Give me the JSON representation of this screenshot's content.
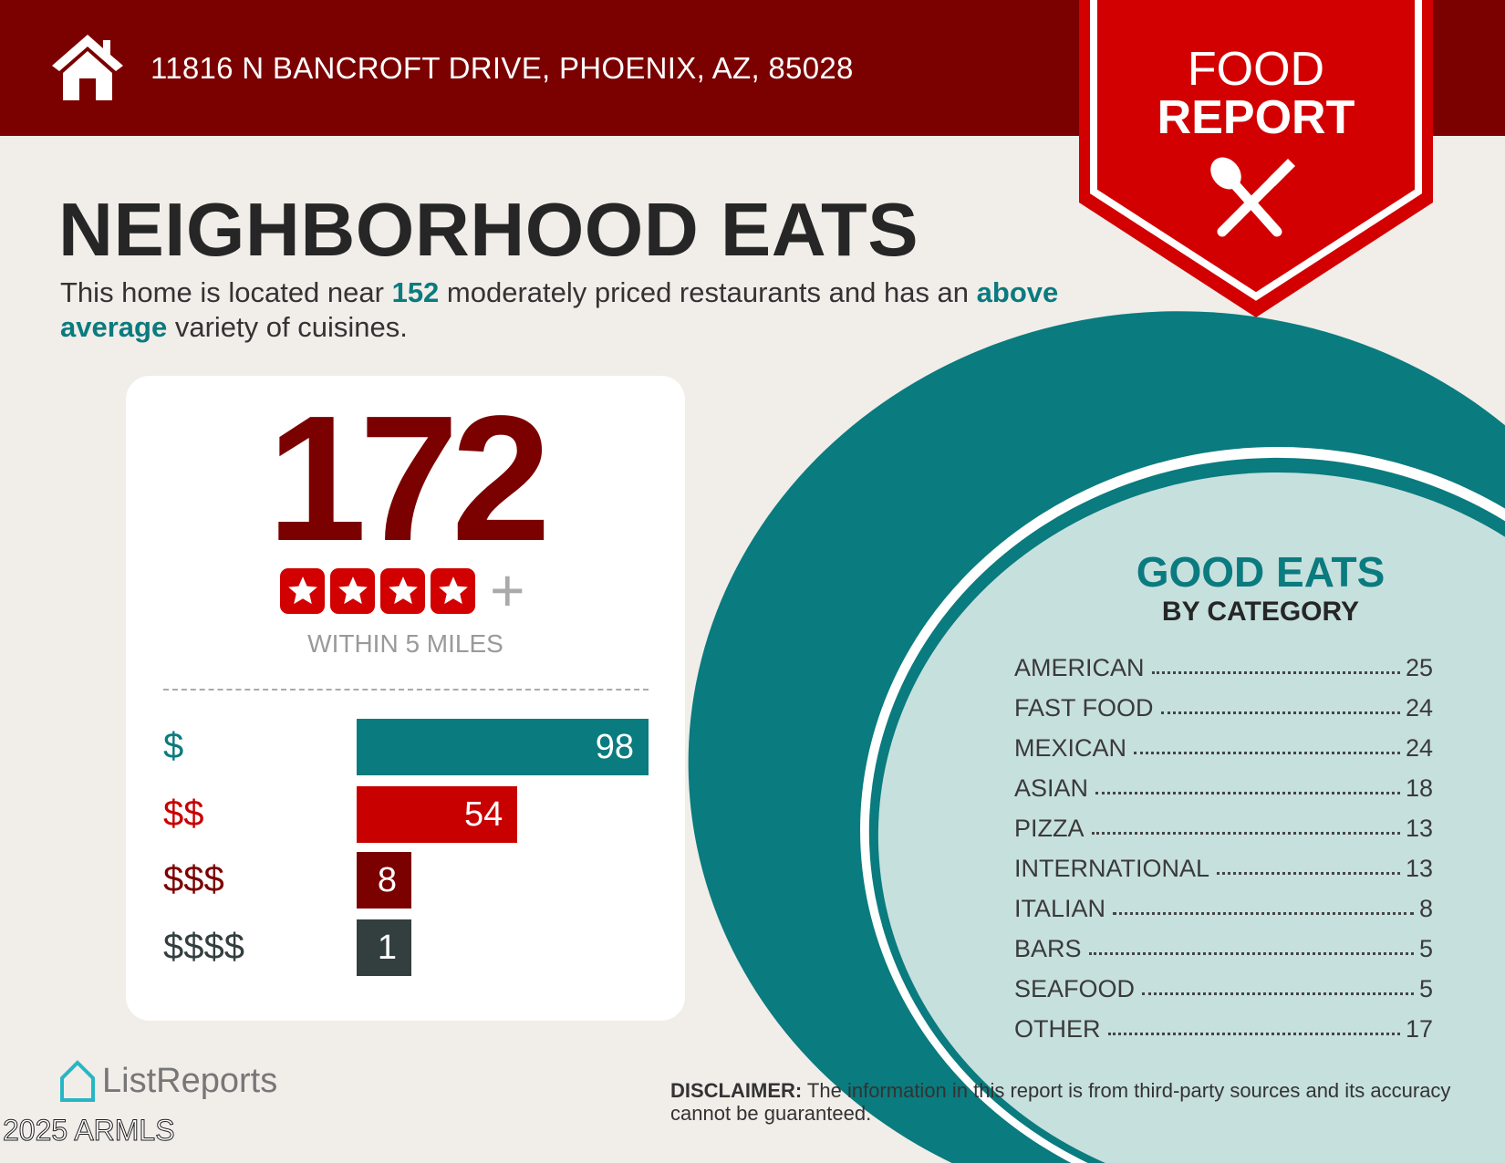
{
  "header": {
    "address": "11816 N BANCROFT DRIVE, PHOENIX, AZ, 85028",
    "icon": "home-icon"
  },
  "banner": {
    "line1": "FOOD",
    "line2": "REPORT",
    "icon": "spoon-fork-icon"
  },
  "title": "NEIGHBORHOOD EATS",
  "subtitle": {
    "part1": "This home is located near ",
    "count": "152",
    "part2": " moderately priced restaurants and has an ",
    "variety": "above average",
    "part3": " variety of cuisines."
  },
  "summary": {
    "total": "172",
    "stars": 4,
    "plus": "+",
    "within": "WITHIN 5 MILES",
    "price_levels": [
      {
        "label": "$",
        "value": 98,
        "color": "#0a7b7e"
      },
      {
        "label": "$$",
        "value": 54,
        "color": "#c80000"
      },
      {
        "label": "$$$",
        "value": 8,
        "color": "#7b0000"
      },
      {
        "label": "$$$$",
        "value": 1,
        "color": "#333f3f"
      }
    ]
  },
  "categories": {
    "title": "GOOD EATS",
    "subtitle": "BY CATEGORY",
    "items": [
      {
        "label": "AMERICAN",
        "value": "25"
      },
      {
        "label": "FAST FOOD",
        "value": "24"
      },
      {
        "label": "MEXICAN",
        "value": "24"
      },
      {
        "label": "ASIAN",
        "value": "18"
      },
      {
        "label": "PIZZA",
        "value": "13"
      },
      {
        "label": "INTERNATIONAL",
        "value": "13"
      },
      {
        "label": "ITALIAN",
        "value": "8"
      },
      {
        "label": "BARS",
        "value": "5"
      },
      {
        "label": "SEAFOOD",
        "value": "5"
      },
      {
        "label": "OTHER",
        "value": "17"
      }
    ]
  },
  "footer": {
    "disclaimer_label": "DISCLAIMER:",
    "disclaimer_text": " The information in this report is from third-party sources and its accuracy cannot be guaranteed.",
    "logo": "ListReports",
    "copyright": "2025 ARMLS"
  },
  "colors": {
    "header": "#7b0000",
    "banner": "#d20000",
    "teal": "#0a7b7e",
    "plate": "#c6e0de",
    "background": "#f1ede9"
  }
}
